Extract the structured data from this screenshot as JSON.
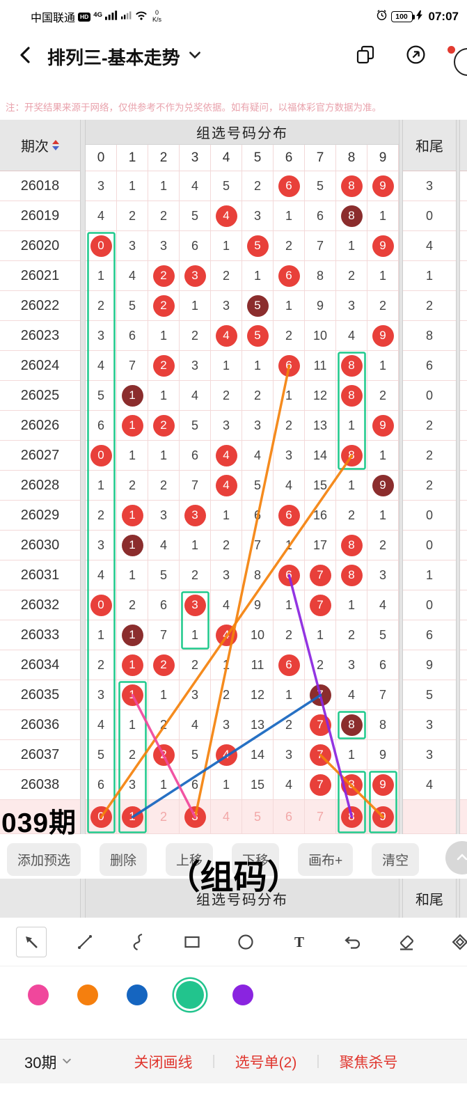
{
  "status_bar": {
    "carrier": "中国联通",
    "hd": "HD",
    "network": "4G",
    "speed_value": "0",
    "speed_unit": "K/s",
    "battery": "100",
    "time": "07:07"
  },
  "nav": {
    "title": "排列三-基本走势",
    "icons": [
      "back-chevron",
      "chevron-down",
      "window-switch",
      "share",
      "notification-circle"
    ]
  },
  "notice": "注：开奖结果来源于网络，仅供参考不作为兑奖依据。如有疑问，以福体彩官方数据为准。",
  "colors": {
    "red_circle": "#e8403a",
    "dark_circle": "#8b2d2d",
    "green_box": "#1fc98c",
    "predict_row_bg": "#fdeaea"
  },
  "table": {
    "period_header": "期次",
    "group_header": "组选号码分布",
    "sum_header": "和尾",
    "digit_headers": [
      "0",
      "1",
      "2",
      "3",
      "4",
      "5",
      "6",
      "7",
      "8",
      "9"
    ],
    "rows": [
      {
        "period": "26018",
        "values": [
          "3",
          "1",
          "1",
          "4",
          "5",
          "2",
          "6",
          "5",
          "8",
          "9"
        ],
        "red": [
          6,
          8,
          9
        ],
        "dark": [],
        "sum": "3"
      },
      {
        "period": "26019",
        "values": [
          "4",
          "2",
          "2",
          "5",
          "4",
          "3",
          "1",
          "6",
          "8",
          "1"
        ],
        "red": [
          4
        ],
        "dark": [
          8
        ],
        "sum": "0"
      },
      {
        "period": "26020",
        "values": [
          "0",
          "3",
          "3",
          "6",
          "1",
          "5",
          "2",
          "7",
          "1",
          "9"
        ],
        "red": [
          0,
          5,
          9
        ],
        "dark": [],
        "sum": "4"
      },
      {
        "period": "26021",
        "values": [
          "1",
          "4",
          "2",
          "3",
          "2",
          "1",
          "6",
          "8",
          "2",
          "1"
        ],
        "red": [
          2,
          3,
          6
        ],
        "dark": [],
        "sum": "1"
      },
      {
        "period": "26022",
        "values": [
          "2",
          "5",
          "2",
          "1",
          "3",
          "5",
          "1",
          "9",
          "3",
          "2"
        ],
        "red": [
          2
        ],
        "dark": [
          5
        ],
        "sum": "2"
      },
      {
        "period": "26023",
        "values": [
          "3",
          "6",
          "1",
          "2",
          "4",
          "5",
          "2",
          "10",
          "4",
          "9"
        ],
        "red": [
          4,
          5,
          9
        ],
        "dark": [],
        "sum": "8"
      },
      {
        "period": "26024",
        "values": [
          "4",
          "7",
          "2",
          "3",
          "1",
          "1",
          "6",
          "11",
          "8",
          "1"
        ],
        "red": [
          2,
          6,
          8
        ],
        "dark": [],
        "sum": "6"
      },
      {
        "period": "26025",
        "values": [
          "5",
          "1",
          "1",
          "4",
          "2",
          "2",
          "1",
          "12",
          "8",
          "2"
        ],
        "red": [
          8
        ],
        "dark": [
          1
        ],
        "sum": "0"
      },
      {
        "period": "26026",
        "values": [
          "6",
          "1",
          "2",
          "5",
          "3",
          "3",
          "2",
          "13",
          "1",
          "9"
        ],
        "red": [
          1,
          2,
          9
        ],
        "dark": [],
        "sum": "2"
      },
      {
        "period": "26027",
        "values": [
          "0",
          "1",
          "1",
          "6",
          "4",
          "4",
          "3",
          "14",
          "8",
          "1"
        ],
        "red": [
          0,
          4,
          8
        ],
        "dark": [],
        "sum": "2"
      },
      {
        "period": "26028",
        "values": [
          "1",
          "2",
          "2",
          "7",
          "4",
          "5",
          "4",
          "15",
          "1",
          "9"
        ],
        "red": [
          4
        ],
        "dark": [
          9
        ],
        "sum": "2"
      },
      {
        "period": "26029",
        "values": [
          "2",
          "1",
          "3",
          "3",
          "1",
          "6",
          "6",
          "16",
          "2",
          "1"
        ],
        "red": [
          1,
          3,
          6
        ],
        "dark": [],
        "sum": "0"
      },
      {
        "period": "26030",
        "values": [
          "3",
          "1",
          "4",
          "1",
          "2",
          "7",
          "1",
          "17",
          "8",
          "2"
        ],
        "red": [
          8
        ],
        "dark": [
          1
        ],
        "sum": "0"
      },
      {
        "period": "26031",
        "values": [
          "4",
          "1",
          "5",
          "2",
          "3",
          "8",
          "6",
          "7",
          "8",
          "3"
        ],
        "red": [
          6,
          7,
          8
        ],
        "dark": [],
        "sum": "1"
      },
      {
        "period": "26032",
        "values": [
          "0",
          "2",
          "6",
          "3",
          "4",
          "9",
          "1",
          "7",
          "1",
          "4"
        ],
        "red": [
          0,
          3,
          7
        ],
        "dark": [],
        "sum": "0"
      },
      {
        "period": "26033",
        "values": [
          "1",
          "1",
          "7",
          "1",
          "4",
          "10",
          "2",
          "1",
          "2",
          "5"
        ],
        "red": [
          4
        ],
        "dark": [
          1
        ],
        "sum": "6"
      },
      {
        "period": "26034",
        "values": [
          "2",
          "1",
          "2",
          "2",
          "1",
          "11",
          "6",
          "2",
          "3",
          "6"
        ],
        "red": [
          1,
          2,
          6
        ],
        "dark": [],
        "sum": "9"
      },
      {
        "period": "26035",
        "values": [
          "3",
          "1",
          "1",
          "3",
          "2",
          "12",
          "1",
          "7",
          "4",
          "7"
        ],
        "red": [
          1
        ],
        "dark": [
          7
        ],
        "sum": "5"
      },
      {
        "period": "26036",
        "values": [
          "4",
          "1",
          "2",
          "4",
          "3",
          "13",
          "2",
          "7",
          "8",
          "8"
        ],
        "red": [
          7
        ],
        "dark": [
          8
        ],
        "sum": "3"
      },
      {
        "period": "26037",
        "values": [
          "5",
          "2",
          "2",
          "5",
          "4",
          "14",
          "3",
          "7",
          "1",
          "9"
        ],
        "red": [
          2,
          4,
          7
        ],
        "dark": [],
        "sum": "3"
      },
      {
        "period": "26038",
        "values": [
          "6",
          "3",
          "1",
          "6",
          "1",
          "15",
          "4",
          "7",
          "8",
          "9"
        ],
        "red": [
          7,
          8,
          9
        ],
        "dark": [],
        "sum": "4"
      },
      {
        "period": "26039",
        "values": [
          "0",
          "1",
          "2",
          "3",
          "4",
          "5",
          "6",
          "7",
          "8",
          "9"
        ],
        "red": [
          0,
          1,
          3,
          8,
          9
        ],
        "dark": [],
        "faded": [
          2,
          4,
          5,
          6,
          7
        ],
        "sum": "",
        "predict": true
      }
    ]
  },
  "annotations": {
    "period_label": "039期",
    "center_label": "（组码）",
    "green_boxes": [
      {
        "col": 0,
        "row_start": 2,
        "row_end": 21
      },
      {
        "col": 8,
        "row_start": 6,
        "row_end": 9
      },
      {
        "col": 3,
        "row_start": 14,
        "row_end": 15
      },
      {
        "col": 1,
        "row_start": 17,
        "row_end": 21
      },
      {
        "col": 8,
        "row_start": 18,
        "row_end": 18
      },
      {
        "col": 8,
        "row_start": 20,
        "row_end": 21
      },
      {
        "col": 9,
        "row_start": 20,
        "row_end": 21
      }
    ],
    "lines": [
      {
        "color": "#f5820b",
        "from": {
          "col": 0,
          "row": 21
        },
        "to": {
          "col": 8,
          "row": 9
        }
      },
      {
        "color": "#f5820b",
        "from": {
          "col": 3,
          "row": 21
        },
        "to": {
          "col": 6,
          "row": 6
        }
      },
      {
        "color": "#f5820b",
        "from": {
          "col": 9,
          "row": 21
        },
        "to": {
          "col": 7,
          "row": 19
        }
      },
      {
        "color": "#8a24e0",
        "from": {
          "col": 8,
          "row": 21
        },
        "to": {
          "col": 6,
          "row": 13
        }
      },
      {
        "color": "#1565c0",
        "from": {
          "col": 1,
          "row": 21
        },
        "to": {
          "col": 7,
          "row": 17
        }
      },
      {
        "color": "#f0479c",
        "from": {
          "col": 3,
          "row": 21
        },
        "to": {
          "col": 1,
          "row": 17
        }
      }
    ]
  },
  "action_bar": {
    "buttons": [
      {
        "label": "添加预选",
        "name": "add-preselect"
      },
      {
        "label": "删除",
        "name": "delete"
      },
      {
        "label": "上移",
        "name": "move-up"
      },
      {
        "label": "下移",
        "name": "move-down"
      },
      {
        "label": "画布+",
        "name": "canvas-plus"
      },
      {
        "label": "清空",
        "name": "clear"
      }
    ]
  },
  "draw_tools": {
    "tools": [
      {
        "name": "cursor-arrow",
        "selected": true
      },
      {
        "name": "line"
      },
      {
        "name": "curve"
      },
      {
        "name": "rectangle"
      },
      {
        "name": "ellipse"
      },
      {
        "name": "text"
      },
      {
        "name": "undo"
      },
      {
        "name": "eraser"
      },
      {
        "name": "shapes"
      }
    ]
  },
  "palette": {
    "colors": [
      {
        "name": "pink",
        "hex": "#f0479c"
      },
      {
        "name": "orange",
        "hex": "#f57f0e"
      },
      {
        "name": "blue",
        "hex": "#1565c0"
      },
      {
        "name": "green",
        "hex": "#22c48d",
        "selected": true
      },
      {
        "name": "purple",
        "hex": "#8a24e0"
      }
    ]
  },
  "bottom_bar": {
    "period_selector": "30期",
    "actions": [
      {
        "label": "关闭画线",
        "name": "close-drawing"
      },
      {
        "label": "选号单(2)",
        "name": "selection-list"
      },
      {
        "label": "聚焦杀号",
        "name": "focus-kill-number"
      }
    ]
  }
}
